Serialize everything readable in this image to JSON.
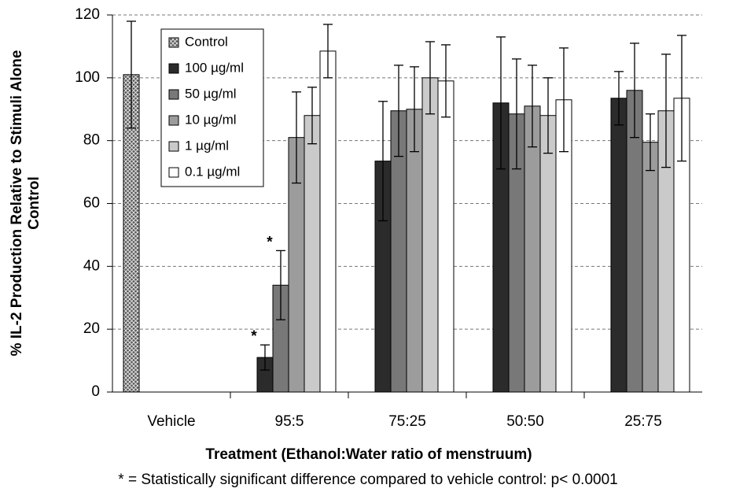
{
  "chart_data": {
    "type": "bar",
    "ylabel": [
      "% IL-2 Production Relative to Stimuli Alone",
      "Control"
    ],
    "xlabel": "Treatment (Ethanol:Water ratio of menstruum)",
    "footnote": "* = Statistically significant difference compared to vehicle control: p< 0.0001",
    "annotations": [
      "*",
      "*"
    ],
    "categories": [
      "Vehicle",
      "95:5",
      "75:25",
      "50:50",
      "25:75"
    ],
    "series": [
      {
        "name": "Control",
        "color": "#7a7a7a",
        "hatch": true,
        "values": [
          101,
          null,
          null,
          null,
          null
        ],
        "errors": [
          17,
          null,
          null,
          null,
          null
        ]
      },
      {
        "name": "100 µg/ml",
        "color": "#2b2b2b",
        "values": [
          null,
          11,
          73.5,
          92,
          93.5
        ],
        "errors": [
          null,
          4,
          19,
          21,
          8.5
        ]
      },
      {
        "name": "50 µg/ml",
        "color": "#787878",
        "values": [
          null,
          34,
          89.5,
          88.5,
          96
        ],
        "errors": [
          null,
          11,
          14.5,
          17.5,
          15
        ]
      },
      {
        "name": "10 µg/ml",
        "color": "#9c9c9c",
        "values": [
          null,
          81,
          90,
          91,
          79.5
        ],
        "errors": [
          null,
          14.5,
          13.5,
          13,
          9
        ]
      },
      {
        "name": "1 µg/ml",
        "color": "#cacaca",
        "values": [
          null,
          88,
          100,
          88,
          89.5
        ],
        "errors": [
          null,
          9,
          11.5,
          12,
          18
        ]
      },
      {
        "name": "0.1 µg/ml",
        "color": "#ffffff",
        "values": [
          null,
          108.5,
          99,
          93,
          93.5
        ],
        "errors": [
          null,
          8.5,
          11.5,
          16.5,
          20
        ]
      }
    ],
    "ylim": [
      0,
      120
    ],
    "yticks": [
      0,
      20,
      40,
      60,
      80,
      100,
      120
    ],
    "grid": true
  }
}
